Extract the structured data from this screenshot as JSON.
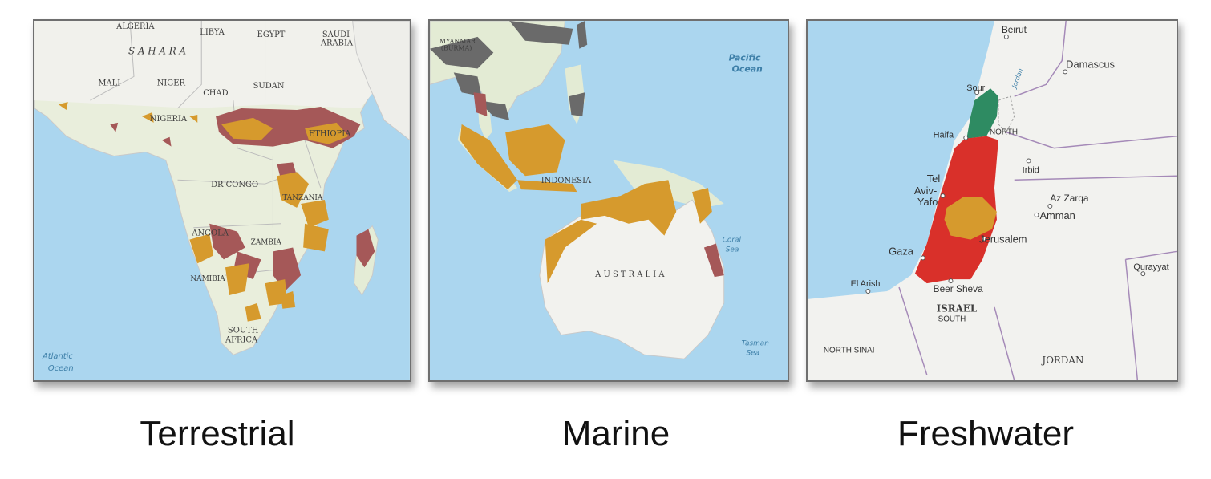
{
  "panels": [
    {
      "caption": "Terrestrial",
      "labels": {
        "algeria": "ALGERIA",
        "libya": "LIBYA",
        "egypt": "EGYPT",
        "saudi1": "SAUDI",
        "saudi2": "ARABIA",
        "sahara": "S A H A R A",
        "mali": "MALI",
        "niger": "NIGER",
        "chad": "CHAD",
        "sudan": "SUDAN",
        "nigeria": "NIGERIA",
        "ethiopia": "ETHIOPIA",
        "drc": "DR CONGO",
        "tanzania": "TANZANIA",
        "angola": "ANGOLA",
        "zambia": "ZAMBIA",
        "namibia": "NAMIBIA",
        "sa1": "SOUTH",
        "sa2": "AFRICA",
        "atlantic1": "Atlantic",
        "atlantic2": "Ocean"
      }
    },
    {
      "caption": "Marine",
      "labels": {
        "myanmar1": "MYANMAR",
        "myanmar2": "(BURMA)",
        "pacific1": "Pacific",
        "pacific2": "Ocean",
        "indonesia": "INDONESIA",
        "australia": "A U S T R A L I A",
        "coral1": "Coral",
        "coral2": "Sea",
        "tasman1": "Tasman",
        "tasman2": "Sea"
      }
    },
    {
      "caption": "Freshwater",
      "labels": {
        "beirut": "Beirut",
        "damascus": "Damascus",
        "sour": "Sour",
        "haifa": "Haifa",
        "north": "NORTH",
        "irbid": "Irbid",
        "telaviv1": "Tel",
        "telaviv2": "Aviv-",
        "telaviv3": "Yafo",
        "azzarqa": "Az Zarqa",
        "amman": "Amman",
        "jerusalem": "Jerusalem",
        "gaza": "Gaza",
        "elarish": "El Arish",
        "beersheva": "Beer Sheva",
        "israel": "ISRAEL",
        "south": "SOUTH",
        "northsinai": "NORTH SINAI",
        "jordan": "JORDAN",
        "qurayyat": "Qurayyat",
        "jordanriver": "Jordan"
      }
    }
  ],
  "colors": {
    "ocean": "#a9d7f0",
    "land": "#e4ecd6",
    "desert": "#efefe8",
    "ochre": "#d69a2d",
    "maroon": "#a55858",
    "grey": "#6a6a6a",
    "red": "#d9302a",
    "green": "#2e8b62",
    "border": "#a58ab8"
  }
}
